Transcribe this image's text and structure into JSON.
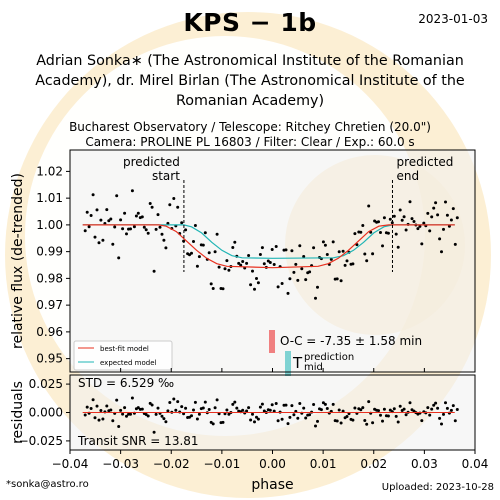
{
  "header": {
    "title": "KPS − 1b",
    "date": "2023-01-03",
    "authors": "Adrian Sonka∗ (The Astronomical Institute of the Romanian Academy), dr. Mirel Birlan (The Astronomical Institute of the Romanian Academy)",
    "observatory_line": "Bucharest Observatory / Telescope: Ritchey Chretien (20.0\")",
    "camera_line": "Camera: PROLINE PL 16803 / Filter: Clear / Exp.: 60.0 s"
  },
  "footer": {
    "email": "*sonka@astro.ro",
    "uploaded": "Uploaded: 2023-10-28"
  },
  "colors": {
    "best_fit": "#e8301f",
    "expected": "#20b5b5",
    "points": "#000000",
    "oc_bar": "#f08080",
    "tmid_bar": "#7fd3d3",
    "watermark": "#f6dfb0"
  },
  "chart_data": {
    "type": "scatter",
    "xlabel": "phase",
    "xlim": [
      -0.04,
      0.04
    ],
    "xticks": [
      -0.04,
      -0.03,
      -0.02,
      -0.01,
      0.0,
      0.01,
      0.02,
      0.03,
      0.04
    ],
    "xtick_labels": [
      "−0.04",
      "−0.03",
      "−0.02",
      "−0.01",
      "0.00",
      "0.01",
      "0.02",
      "0.03",
      "0.04"
    ],
    "main": {
      "ylabel": "relative flux (de-trended)",
      "ylim": [
        0.945,
        1.028
      ],
      "yticks": [
        0.95,
        0.96,
        0.97,
        0.98,
        0.99,
        1.0,
        1.01,
        1.02
      ],
      "ytick_labels": [
        "0.95",
        "0.96",
        "0.97",
        "0.98",
        "0.99",
        "1.00",
        "1.01",
        "1.02"
      ],
      "predicted_start": -0.0175,
      "predicted_end": 0.0237,
      "predicted_start_label": [
        "predicted",
        "start"
      ],
      "predicted_end_label": [
        "predicted",
        "end"
      ],
      "legend": [
        "best-fit model",
        "expected model"
      ],
      "legend_position": "lower-left",
      "best_fit": {
        "name": "best-fit model",
        "x": [
          -0.0375,
          -0.0225,
          -0.021,
          -0.019,
          -0.017,
          -0.015,
          -0.013,
          -0.011,
          -0.009,
          0.0,
          0.009,
          0.011,
          0.013,
          0.015,
          0.017,
          0.019,
          0.021,
          0.023,
          0.036
        ],
        "y": [
          1.0,
          1.0,
          0.9995,
          0.9975,
          0.994,
          0.9905,
          0.9875,
          0.9855,
          0.9845,
          0.984,
          0.9845,
          0.9855,
          0.9875,
          0.9905,
          0.994,
          0.9975,
          0.9995,
          1.0,
          1.0
        ]
      },
      "expected": {
        "name": "expected model",
        "x": [
          -0.0375,
          -0.0175,
          -0.016,
          -0.014,
          -0.012,
          -0.01,
          -0.008,
          -0.006,
          0.0,
          0.012,
          0.014,
          0.016,
          0.018,
          0.02,
          0.022,
          0.0237,
          0.036
        ],
        "y": [
          1.0,
          1.0,
          0.9993,
          0.997,
          0.9935,
          0.9905,
          0.9885,
          0.9877,
          0.9875,
          0.9877,
          0.9885,
          0.9905,
          0.9935,
          0.997,
          0.9993,
          1.0,
          1.0
        ]
      },
      "oc_label": "O-C = -7.35 ± 1.58 min",
      "tmid_label_T": "T",
      "tmid_label_mid": "mid",
      "tmid_label_prediction": "prediction"
    },
    "residuals": {
      "ylabel": "residuals",
      "ylim": [
        -0.033,
        0.033
      ],
      "yticks": [
        -0.025,
        0.0,
        0.025
      ],
      "ytick_labels": [
        "−0.025",
        "0.000",
        "0.025"
      ],
      "std_label": "STD = 6.529 ‰",
      "snr_label": "Transit SNR = 13.81"
    }
  }
}
